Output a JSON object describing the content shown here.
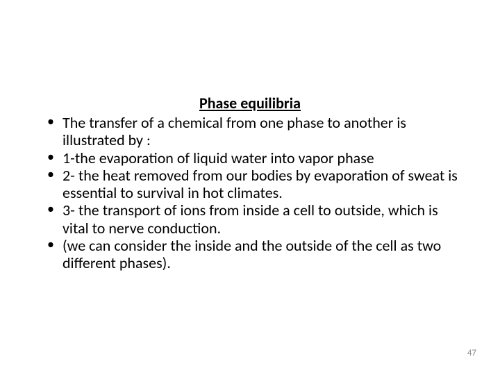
{
  "slide": {
    "title": "Phase equilibria",
    "bullets": [
      "The transfer of a chemical from one phase to another is illustrated by :",
      "1-the evaporation of liquid water into vapor phase",
      "2- the heat removed from our bodies by evaporation of sweat is essential to survival in hot climates.",
      "3- the transport of ions from inside a cell to outside, which is vital to nerve conduction.",
      "(we can consider the inside and the outside of the cell as two different phases)."
    ],
    "page_number": "47"
  },
  "styling": {
    "background_color": "#ffffff",
    "text_color": "#000000",
    "page_number_color": "#8b8b8b",
    "title_fontsize": 22,
    "body_fontsize": 22,
    "font_family": "Calibri, Arial, sans-serif"
  }
}
